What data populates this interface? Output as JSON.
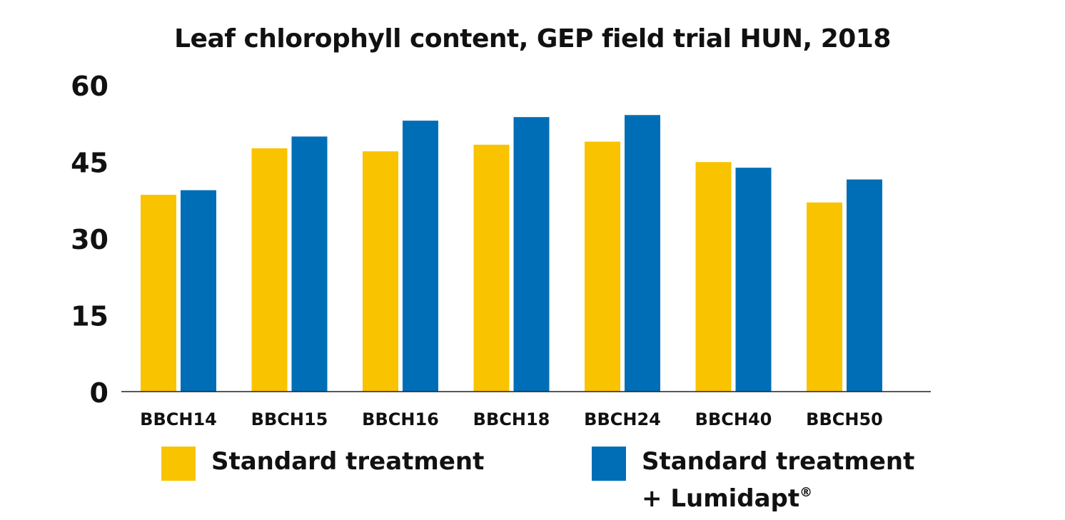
{
  "chart_data": {
    "type": "bar",
    "title": "Leaf chlorophyll content, GEP field trial HUN, 2018",
    "categories": [
      "BBCH14",
      "BBCH15",
      "BBCH16",
      "BBCH18",
      "BBCH24",
      "BBCH40",
      "BBCH50"
    ],
    "series": [
      {
        "name": "Standard treatment",
        "color": "#f9c300",
        "values": [
          38.5,
          47.6,
          47.0,
          48.3,
          48.9,
          44.9,
          37.0
        ]
      },
      {
        "name": "Standard treatment + Lumidapt®",
        "color": "#006eb7",
        "values": [
          39.4,
          49.9,
          53.0,
          53.7,
          54.1,
          43.8,
          41.5
        ]
      }
    ],
    "yticks": [
      0,
      15,
      30,
      45,
      60
    ],
    "ylim": [
      0,
      60
    ],
    "grid": false,
    "legend_position": "bottom"
  },
  "legend": {
    "item1": "Standard treatment",
    "item2_line1": "Standard treatment",
    "item2_line2": "+ Lumidapt",
    "item2_mark": "®"
  }
}
